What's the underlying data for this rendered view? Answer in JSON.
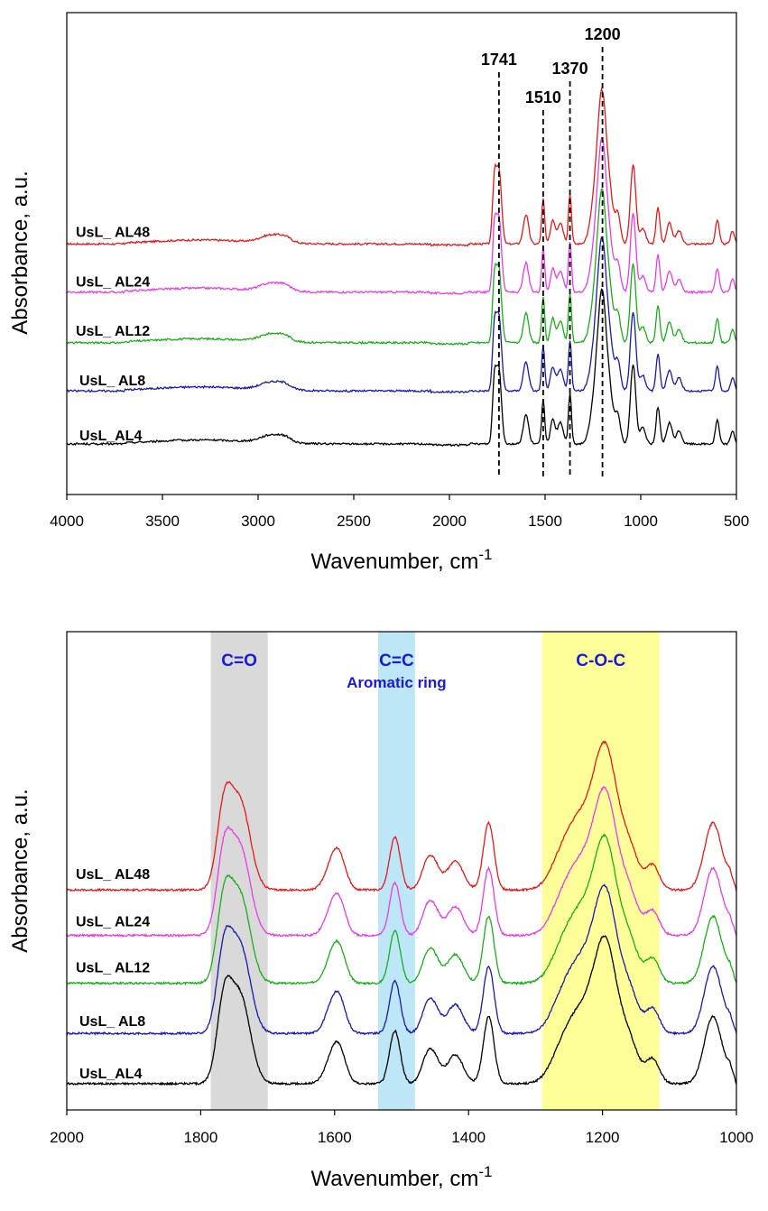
{
  "chart_data": [
    {
      "type": "line",
      "xlabel": "Wavenumber, cm",
      "xlabel_sup": "-1",
      "ylabel": "Absorbance, a.u.",
      "xlim": [
        4000,
        500
      ],
      "xticks": [
        "4000",
        "3500",
        "3000",
        "2500",
        "2000",
        "1500",
        "1000",
        "500"
      ],
      "ylim": [
        0,
        1
      ],
      "series": [
        {
          "name": "UsL_ AL48",
          "color": "#e41a1a",
          "offset": 0.52
        },
        {
          "name": "UsL_ AL24",
          "color": "#e83ce8",
          "offset": 0.42
        },
        {
          "name": "UsL_ AL12",
          "color": "#1aae1a",
          "offset": 0.315
        },
        {
          "name": "UsL_ AL8",
          "color": "#1a1aa8",
          "offset": 0.215
        },
        {
          "name": "UsL_AL4",
          "color": "#000000",
          "offset": 0.105
        }
      ],
      "peaks": [
        {
          "label": "1741",
          "x": 1741
        },
        {
          "label": "1510",
          "x": 1510
        },
        {
          "label": "1370",
          "x": 1370
        },
        {
          "label": "1200",
          "x": 1200
        }
      ]
    },
    {
      "type": "line",
      "xlabel": "Wavenumber, cm",
      "xlabel_sup": "-1",
      "ylabel": "Absorbance, a.u.",
      "xlim": [
        2000,
        1000
      ],
      "xticks": [
        "2000",
        "1800",
        "1600",
        "1400",
        "1200",
        "1000"
      ],
      "ylim": [
        0,
        1
      ],
      "series": [
        {
          "name": "UsL_ AL48",
          "color": "#e41a1a",
          "offset": 0.46
        },
        {
          "name": "UsL_ AL24",
          "color": "#e83ce8",
          "offset": 0.365
        },
        {
          "name": "UsL_ AL12",
          "color": "#1aae1a",
          "offset": 0.265
        },
        {
          "name": "UsL_ AL8",
          "color": "#1a1aa8",
          "offset": 0.16
        },
        {
          "name": "UsL_AL4",
          "color": "#000000",
          "offset": 0.055
        }
      ],
      "bands": [
        {
          "label": "C=O",
          "sublabel": "",
          "from": 1785,
          "to": 1700,
          "color": "#d9d9d9"
        },
        {
          "label": "C=C",
          "sublabel": "Aromatic ring",
          "from": 1535,
          "to": 1480,
          "color": "#bde6f7"
        },
        {
          "label": "C-O-C",
          "sublabel": "",
          "from": 1290,
          "to": 1115,
          "color": "#ffff99"
        }
      ]
    }
  ]
}
